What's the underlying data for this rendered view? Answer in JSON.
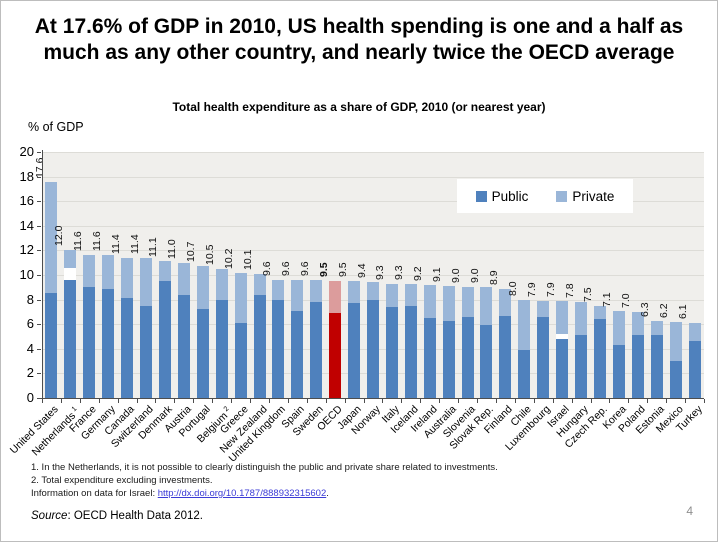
{
  "slide": {
    "title": "At 17.6% of GDP in 2010, US health spending is one and a half as much as any other country, and nearly twice the OECD average",
    "page_number": "4"
  },
  "footnotes": {
    "line1": "1. In the Netherlands, it is not possible to clearly distinguish the public and private share related to investments.",
    "line2": "2. Total expenditure excluding investments.",
    "line3_prefix": "Information on data for Israel: ",
    "line3_link": "http://dx.doi.org/10.1787/888932315602",
    "line3_suffix": "."
  },
  "source": {
    "label": "Source",
    "text": ": OECD Health Data 2012."
  },
  "chart_data": {
    "type": "stacked-bar",
    "title": "Total health expenditure as a share of GDP, 2010 (or nearest year)",
    "unit_label": "% of GDP",
    "ylim": [
      0,
      20
    ],
    "yticks": [
      0,
      2,
      4,
      6,
      8,
      10,
      12,
      14,
      16,
      18,
      20
    ],
    "grid": true,
    "legend": {
      "position": "top-right-inside",
      "entries": [
        "Public",
        "Private"
      ]
    },
    "colors": {
      "public": "#4f81bd",
      "private": "#9ab6d8",
      "oecd_public": "#c00000",
      "oecd_private": "#dc9c9c"
    },
    "bars": [
      {
        "label": "United States",
        "total": 17.6,
        "public": 8.5
      },
      {
        "label": "Netherlands",
        "total": 12.0,
        "public": 9.6,
        "gap": 1.0,
        "footnote": "1"
      },
      {
        "label": "France",
        "total": 11.6,
        "public": 9.0
      },
      {
        "label": "Germany",
        "total": 11.6,
        "public": 8.9
      },
      {
        "label": "Canada",
        "total": 11.4,
        "public": 8.1
      },
      {
        "label": "Switzerland",
        "total": 11.4,
        "public": 7.5
      },
      {
        "label": "Denmark",
        "total": 11.1,
        "public": 9.5
      },
      {
        "label": "Austria",
        "total": 11.0,
        "public": 8.4
      },
      {
        "label": "Portugal",
        "total": 10.7,
        "public": 7.2
      },
      {
        "label": "Belgium",
        "total": 10.5,
        "public": 8.0,
        "footnote": "2"
      },
      {
        "label": "Greece",
        "total": 10.2,
        "public": 6.1
      },
      {
        "label": "New Zealand",
        "total": 10.1,
        "public": 8.4
      },
      {
        "label": "United Kingdom",
        "total": 9.6,
        "public": 8.0
      },
      {
        "label": "Spain",
        "total": 9.6,
        "public": 7.1
      },
      {
        "label": "Sweden",
        "total": 9.6,
        "public": 7.8
      },
      {
        "label": "OECD",
        "total": 9.5,
        "public": 6.9,
        "highlight": true
      },
      {
        "label": "Japan",
        "total": 9.5,
        "public": 7.7
      },
      {
        "label": "Norway",
        "total": 9.4,
        "public": 8.0
      },
      {
        "label": "Italy",
        "total": 9.3,
        "public": 7.4
      },
      {
        "label": "Iceland",
        "total": 9.3,
        "public": 7.5
      },
      {
        "label": "Ireland",
        "total": 9.2,
        "public": 6.5
      },
      {
        "label": "Australia",
        "total": 9.1,
        "public": 6.3
      },
      {
        "label": "Slovenia",
        "total": 9.0,
        "public": 6.6
      },
      {
        "label": "Slovak Rep.",
        "total": 9.0,
        "public": 5.9
      },
      {
        "label": "Finland",
        "total": 8.9,
        "public": 6.7
      },
      {
        "label": "Chile",
        "total": 8.0,
        "public": 3.9
      },
      {
        "label": "Luxembourg",
        "total": 7.9,
        "public": 6.6
      },
      {
        "label": "Israel",
        "total": 7.9,
        "public": 4.8,
        "gap": 0.4
      },
      {
        "label": "Hungary",
        "total": 7.8,
        "public": 5.1
      },
      {
        "label": "Czech Rep.",
        "total": 7.5,
        "public": 6.4
      },
      {
        "label": "Korea",
        "total": 7.1,
        "public": 4.3
      },
      {
        "label": "Poland",
        "total": 7.0,
        "public": 5.1
      },
      {
        "label": "Estonia",
        "total": 6.3,
        "public": 5.1
      },
      {
        "label": "Mexico",
        "total": 6.2,
        "public": 3.0
      },
      {
        "label": "Turkey",
        "total": 6.1,
        "public": 4.6
      }
    ]
  }
}
